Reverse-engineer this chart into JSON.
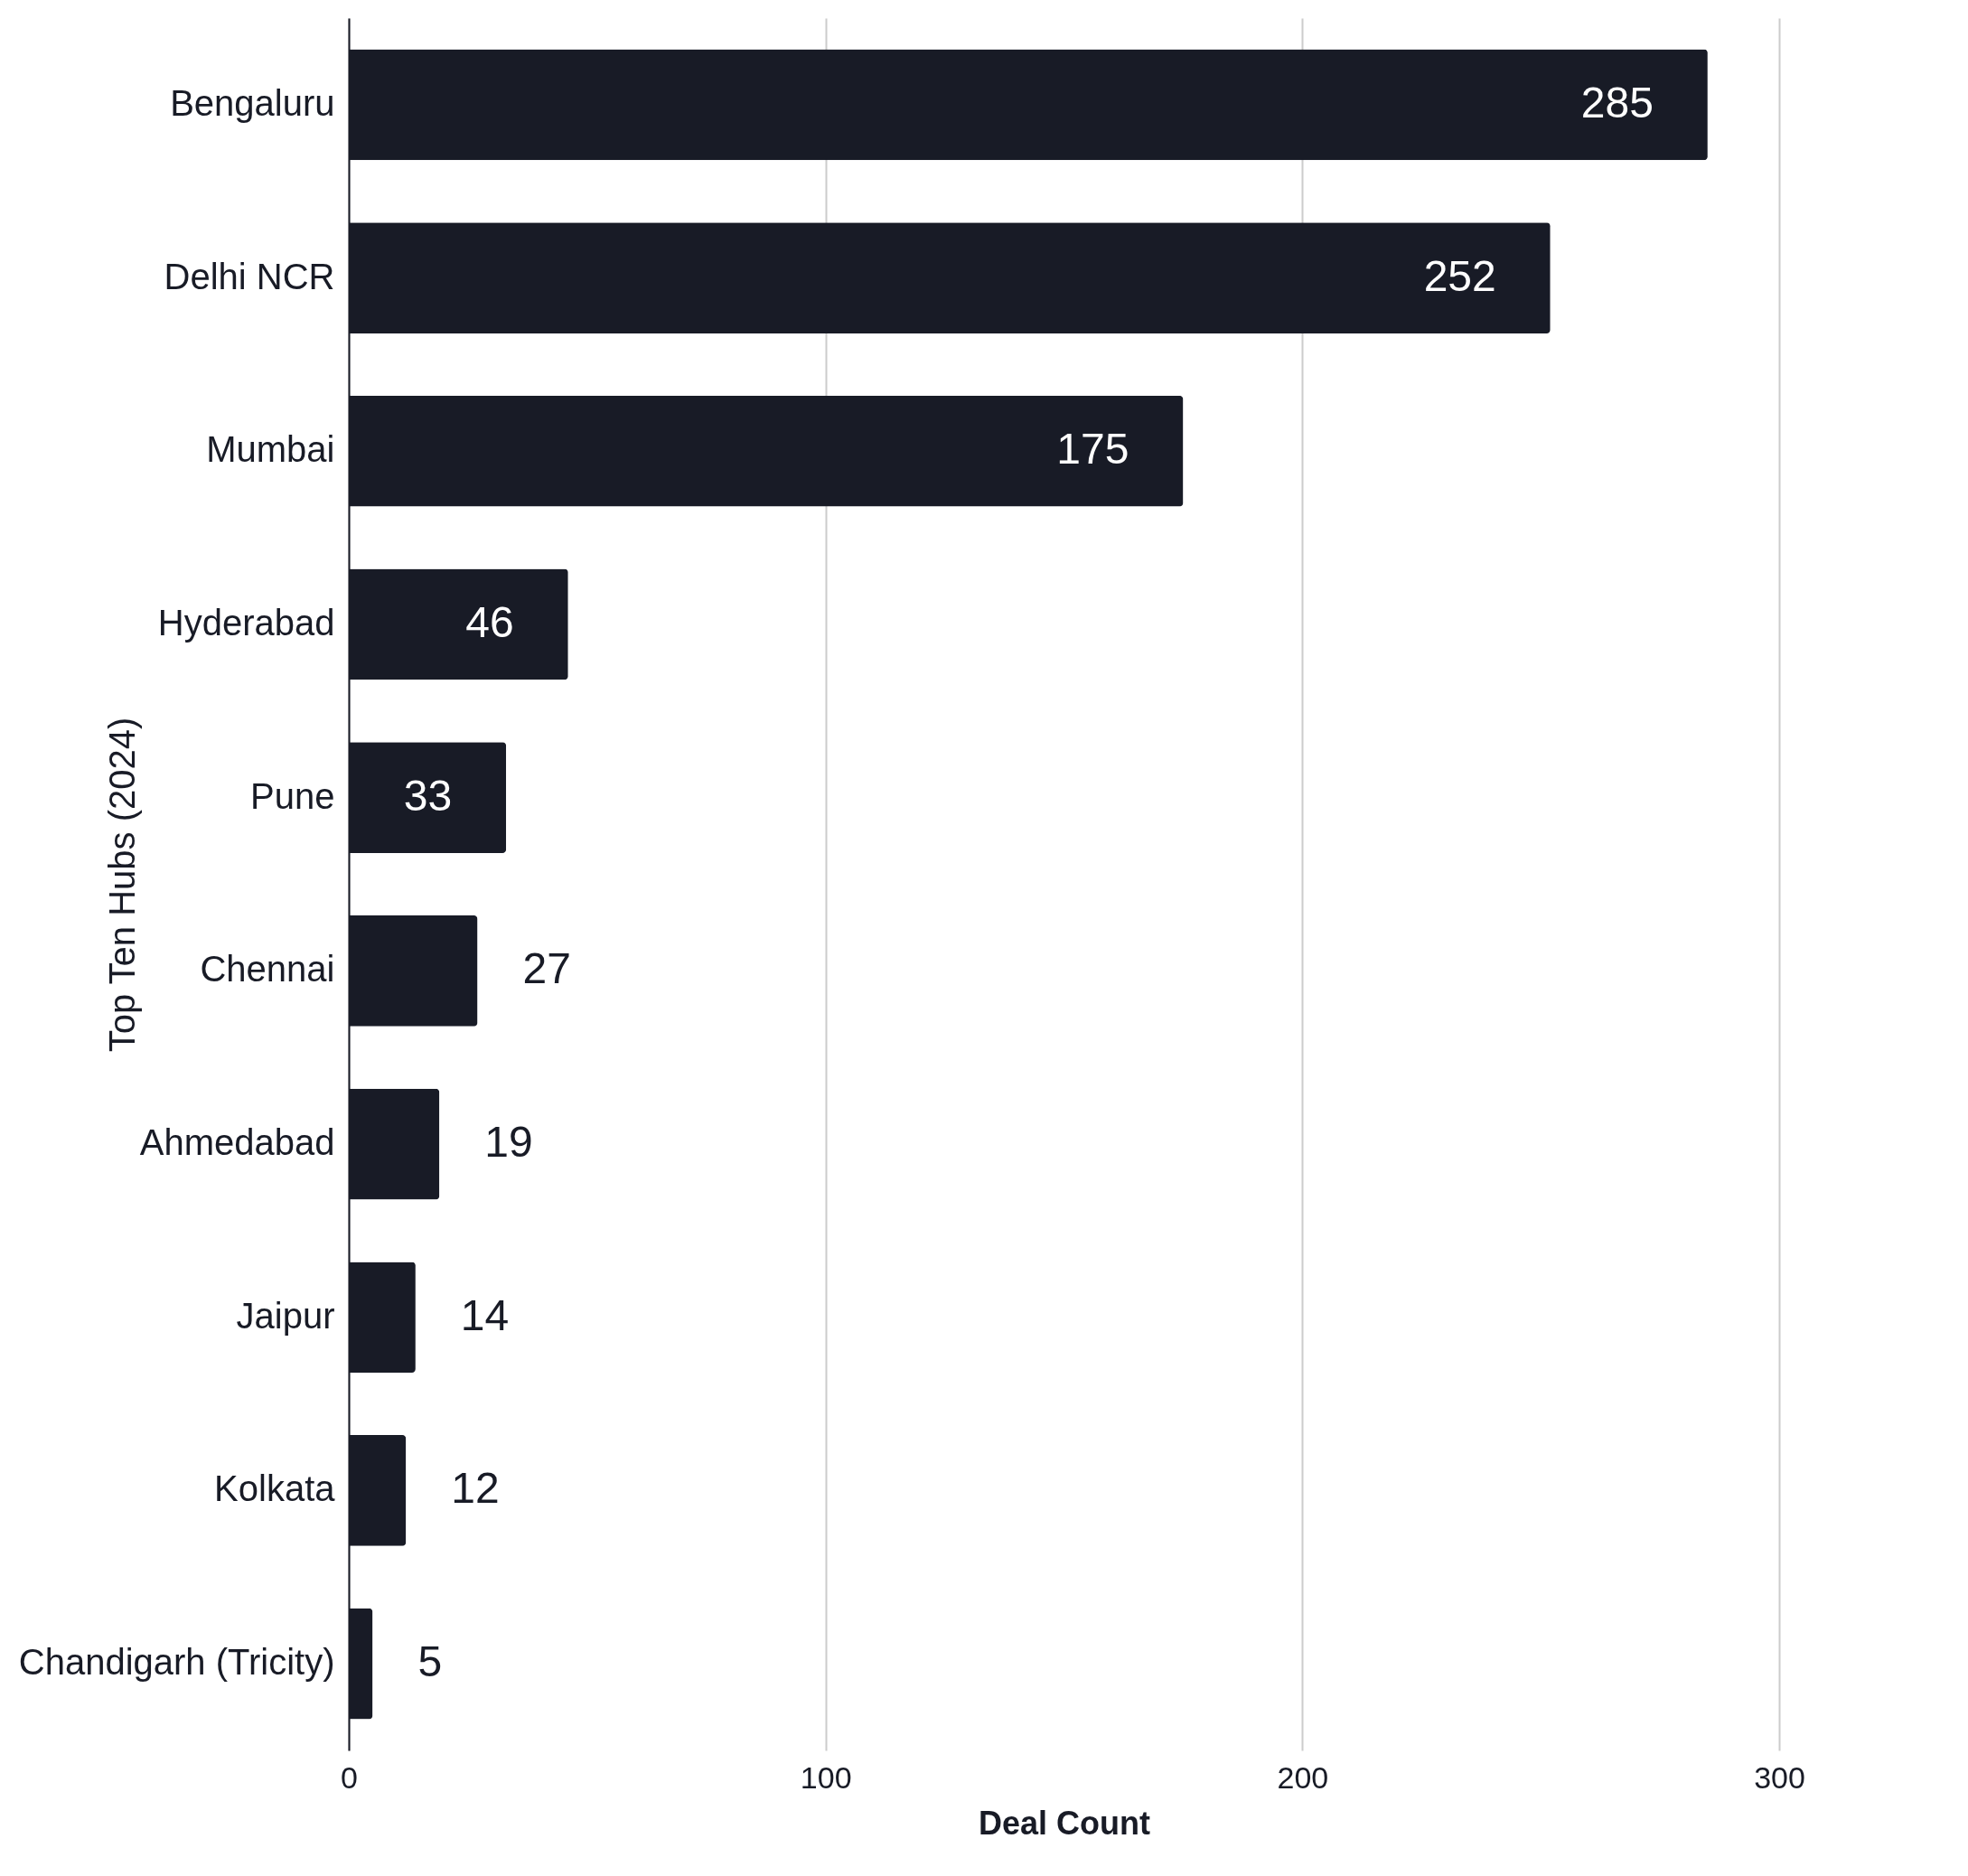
{
  "chart_data": {
    "type": "bar",
    "orientation": "horizontal",
    "xlabel": "Deal Count",
    "ylabel": "Top Ten Hubs (2024)",
    "categories": [
      "Bengaluru",
      "Delhi NCR",
      "Mumbai",
      "Hyderabad",
      "Pune",
      "Chennai",
      "Ahmedabad",
      "Jaipur",
      "Kolkata",
      "Chandigarh (Tricity)"
    ],
    "values": [
      285,
      252,
      175,
      46,
      33,
      27,
      19,
      14,
      12,
      5
    ],
    "color": "#181b26",
    "xlim": [
      0,
      300
    ],
    "xticks": [
      0,
      100,
      200,
      300
    ],
    "grid": "x",
    "data_labels": true
  }
}
